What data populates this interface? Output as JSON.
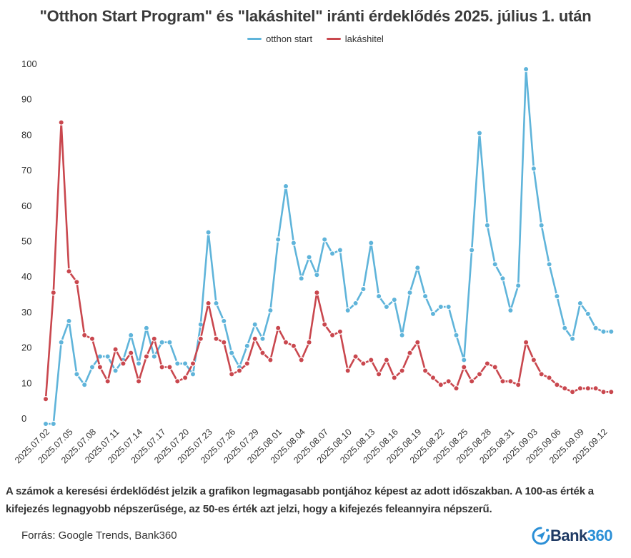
{
  "chart_data": {
    "type": "line",
    "title": "\"Otthon Start Program\" és \"lakáshitel\" iránti érdeklődés 2025. július 1. után",
    "xlabel": "",
    "ylabel": "",
    "ylim": [
      0,
      100
    ],
    "yticks": [
      "0",
      "10",
      "20",
      "30",
      "40",
      "50",
      "60",
      "70",
      "80",
      "90",
      "100"
    ],
    "grid": false,
    "legend_position": "top-center",
    "x_start": "2025.07.02",
    "x_end": "2025.09.13",
    "xtick_labels": [
      "2025.07.02",
      "2025.07.05",
      "2025.07.08",
      "2025.07.11",
      "2025.07.14",
      "2025.07.17",
      "2025.07.20",
      "2025.07.23",
      "2025.07.26",
      "2025.07.29",
      "2025.08.01",
      "2025.08.04",
      "2025.08.07",
      "2025.08.10",
      "2025.08.13",
      "2025.08.16",
      "2025.08.19",
      "2025.08.22",
      "2025.08.25",
      "2025.08.28",
      "2025.08.31",
      "2025.09.03",
      "2025.09.06",
      "2025.09.09",
      "2025.09.12"
    ],
    "series": [
      {
        "name": "otthon start",
        "color": "#5fb4da",
        "values": [
          0,
          0,
          23,
          29,
          14,
          11,
          16,
          19,
          19,
          15,
          18,
          25,
          17,
          27,
          19,
          23,
          23,
          17,
          17,
          14,
          28,
          54,
          34,
          29,
          20,
          16,
          22,
          28,
          24,
          32,
          52,
          67,
          51,
          41,
          47,
          42,
          52,
          48,
          49,
          32,
          34,
          38,
          51,
          36,
          33,
          35,
          25,
          37,
          44,
          36,
          31,
          33,
          33,
          25,
          18,
          49,
          82,
          56,
          45,
          41,
          32,
          39,
          100,
          72,
          56,
          45,
          36,
          27,
          24,
          34,
          31,
          27,
          26,
          26
        ]
      },
      {
        "name": "lakáshitel",
        "color": "#c9474e",
        "values": [
          7,
          37,
          85,
          43,
          40,
          25,
          24,
          16,
          12,
          21,
          17,
          20,
          12,
          19,
          24,
          16,
          16,
          12,
          13,
          17,
          24,
          34,
          24,
          23,
          14,
          15,
          17,
          24,
          20,
          18,
          27,
          23,
          22,
          18,
          23,
          37,
          28,
          25,
          26,
          15,
          19,
          17,
          18,
          14,
          18,
          13,
          15,
          20,
          23,
          15,
          13,
          11,
          12,
          10,
          16,
          12,
          14,
          17,
          16,
          12,
          12,
          11,
          23,
          18,
          14,
          13,
          11,
          10,
          9,
          10,
          10,
          10,
          9,
          9
        ]
      }
    ]
  },
  "footnote": "A számok a keresési érdeklődést jelzik a grafikon legmagasabb pontjához képest az adott időszakban. A 100-as érték a kifejezés legnagyobb népszerűsége, az 50-es érték azt jelzi, hogy a kifejezés feleannyira népszerű.",
  "source": "Forrás: Google Trends, Bank360",
  "logo": {
    "icon": "compass-arrow-icon",
    "part1": "Bank",
    "part2": "360",
    "color_dark": "#1f3a64",
    "color_accent": "#2b8fd6"
  }
}
